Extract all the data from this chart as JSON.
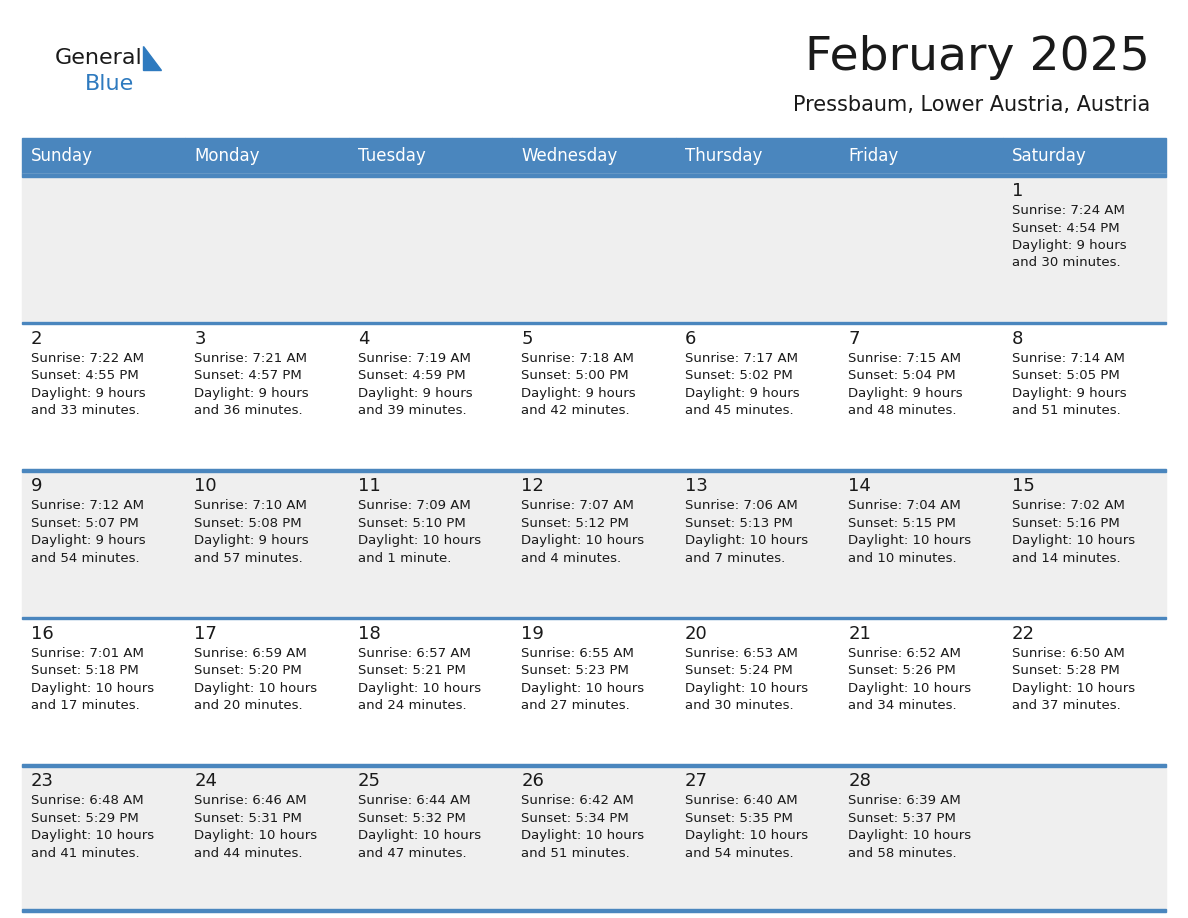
{
  "title": "February 2025",
  "subtitle": "Pressbaum, Lower Austria, Austria",
  "days_of_week": [
    "Sunday",
    "Monday",
    "Tuesday",
    "Wednesday",
    "Thursday",
    "Friday",
    "Saturday"
  ],
  "header_bg": "#4a86be",
  "header_text": "#ffffff",
  "cell_bg_odd": "#efefef",
  "cell_bg_even": "#ffffff",
  "separator_color": "#4a86be",
  "text_color": "#1a1a1a",
  "title_color": "#1a1a1a",
  "subtitle_color": "#1a1a1a",
  "logo_general_color": "#1a1a1a",
  "logo_blue_color": "#2e7abf",
  "calendar_data": [
    [
      {
        "day": null,
        "sunrise": null,
        "sunset": null,
        "daylight": null
      },
      {
        "day": null,
        "sunrise": null,
        "sunset": null,
        "daylight": null
      },
      {
        "day": null,
        "sunrise": null,
        "sunset": null,
        "daylight": null
      },
      {
        "day": null,
        "sunrise": null,
        "sunset": null,
        "daylight": null
      },
      {
        "day": null,
        "sunrise": null,
        "sunset": null,
        "daylight": null
      },
      {
        "day": null,
        "sunrise": null,
        "sunset": null,
        "daylight": null
      },
      {
        "day": 1,
        "sunrise": "7:24 AM",
        "sunset": "4:54 PM",
        "daylight": "9 hours\nand 30 minutes."
      }
    ],
    [
      {
        "day": 2,
        "sunrise": "7:22 AM",
        "sunset": "4:55 PM",
        "daylight": "9 hours\nand 33 minutes."
      },
      {
        "day": 3,
        "sunrise": "7:21 AM",
        "sunset": "4:57 PM",
        "daylight": "9 hours\nand 36 minutes."
      },
      {
        "day": 4,
        "sunrise": "7:19 AM",
        "sunset": "4:59 PM",
        "daylight": "9 hours\nand 39 minutes."
      },
      {
        "day": 5,
        "sunrise": "7:18 AM",
        "sunset": "5:00 PM",
        "daylight": "9 hours\nand 42 minutes."
      },
      {
        "day": 6,
        "sunrise": "7:17 AM",
        "sunset": "5:02 PM",
        "daylight": "9 hours\nand 45 minutes."
      },
      {
        "day": 7,
        "sunrise": "7:15 AM",
        "sunset": "5:04 PM",
        "daylight": "9 hours\nand 48 minutes."
      },
      {
        "day": 8,
        "sunrise": "7:14 AM",
        "sunset": "5:05 PM",
        "daylight": "9 hours\nand 51 minutes."
      }
    ],
    [
      {
        "day": 9,
        "sunrise": "7:12 AM",
        "sunset": "5:07 PM",
        "daylight": "9 hours\nand 54 minutes."
      },
      {
        "day": 10,
        "sunrise": "7:10 AM",
        "sunset": "5:08 PM",
        "daylight": "9 hours\nand 57 minutes."
      },
      {
        "day": 11,
        "sunrise": "7:09 AM",
        "sunset": "5:10 PM",
        "daylight": "10 hours\nand 1 minute."
      },
      {
        "day": 12,
        "sunrise": "7:07 AM",
        "sunset": "5:12 PM",
        "daylight": "10 hours\nand 4 minutes."
      },
      {
        "day": 13,
        "sunrise": "7:06 AM",
        "sunset": "5:13 PM",
        "daylight": "10 hours\nand 7 minutes."
      },
      {
        "day": 14,
        "sunrise": "7:04 AM",
        "sunset": "5:15 PM",
        "daylight": "10 hours\nand 10 minutes."
      },
      {
        "day": 15,
        "sunrise": "7:02 AM",
        "sunset": "5:16 PM",
        "daylight": "10 hours\nand 14 minutes."
      }
    ],
    [
      {
        "day": 16,
        "sunrise": "7:01 AM",
        "sunset": "5:18 PM",
        "daylight": "10 hours\nand 17 minutes."
      },
      {
        "day": 17,
        "sunrise": "6:59 AM",
        "sunset": "5:20 PM",
        "daylight": "10 hours\nand 20 minutes."
      },
      {
        "day": 18,
        "sunrise": "6:57 AM",
        "sunset": "5:21 PM",
        "daylight": "10 hours\nand 24 minutes."
      },
      {
        "day": 19,
        "sunrise": "6:55 AM",
        "sunset": "5:23 PM",
        "daylight": "10 hours\nand 27 minutes."
      },
      {
        "day": 20,
        "sunrise": "6:53 AM",
        "sunset": "5:24 PM",
        "daylight": "10 hours\nand 30 minutes."
      },
      {
        "day": 21,
        "sunrise": "6:52 AM",
        "sunset": "5:26 PM",
        "daylight": "10 hours\nand 34 minutes."
      },
      {
        "day": 22,
        "sunrise": "6:50 AM",
        "sunset": "5:28 PM",
        "daylight": "10 hours\nand 37 minutes."
      }
    ],
    [
      {
        "day": 23,
        "sunrise": "6:48 AM",
        "sunset": "5:29 PM",
        "daylight": "10 hours\nand 41 minutes."
      },
      {
        "day": 24,
        "sunrise": "6:46 AM",
        "sunset": "5:31 PM",
        "daylight": "10 hours\nand 44 minutes."
      },
      {
        "day": 25,
        "sunrise": "6:44 AM",
        "sunset": "5:32 PM",
        "daylight": "10 hours\nand 47 minutes."
      },
      {
        "day": 26,
        "sunrise": "6:42 AM",
        "sunset": "5:34 PM",
        "daylight": "10 hours\nand 51 minutes."
      },
      {
        "day": 27,
        "sunrise": "6:40 AM",
        "sunset": "5:35 PM",
        "daylight": "10 hours\nand 54 minutes."
      },
      {
        "day": 28,
        "sunrise": "6:39 AM",
        "sunset": "5:37 PM",
        "daylight": "10 hours\nand 58 minutes."
      },
      {
        "day": null,
        "sunrise": null,
        "sunset": null,
        "daylight": null
      }
    ]
  ]
}
